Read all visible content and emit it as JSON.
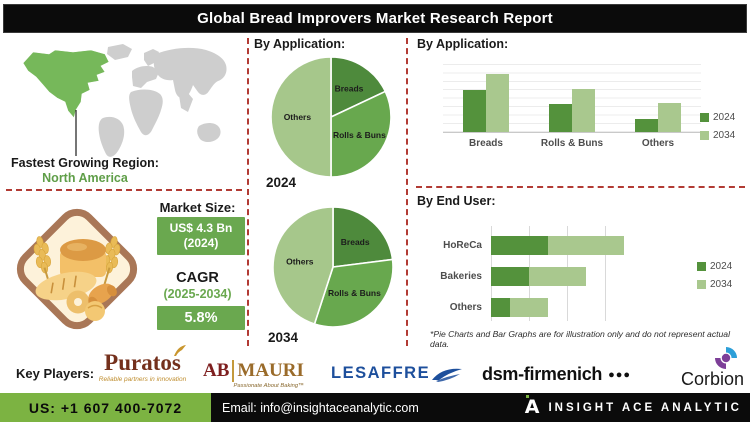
{
  "header": {
    "title": "Global Bread Improvers Market Research Report"
  },
  "left": {
    "region_label": "Fastest Growing Region:",
    "region_value": "North America",
    "map": {
      "highlight_region": "North America",
      "highlight_color": "#76b85a",
      "land_color": "#cecece"
    },
    "market": {
      "size_label": "Market Size:",
      "size_value": "US$ 4.3 Bn",
      "size_year": "(2024)",
      "cagr_label": "CAGR",
      "cagr_period": "(2025-2034)",
      "cagr_value": "5.8%",
      "badge_color": "#6aa84f"
    }
  },
  "pies_heading": "By Application:",
  "charts_note": "*Pie Charts and Bar Graphs are for illustration only and do not represent actual data.",
  "chart_data": [
    {
      "id": "pie-2024",
      "type": "pie",
      "title": "By Application:",
      "year_label": "2024",
      "labels": [
        "Breads",
        "Rolls & Buns",
        "Others"
      ],
      "values": [
        18,
        32,
        50
      ],
      "unit": "percent",
      "colors": [
        "#4e8a3c",
        "#68a84e",
        "#a6c78b"
      ],
      "start": "top",
      "direction": "clockwise"
    },
    {
      "id": "pie-2034",
      "type": "pie",
      "title": "By Application:",
      "year_label": "2034",
      "labels": [
        "Breads",
        "Rolls & Buns",
        "Others"
      ],
      "values": [
        23,
        32,
        45
      ],
      "unit": "percent",
      "colors": [
        "#4e8a3c",
        "#68a84e",
        "#a6c78b"
      ],
      "start": "top",
      "direction": "clockwise"
    },
    {
      "id": "bar-application",
      "type": "bar",
      "title": "By Application:",
      "categories": [
        "Breads",
        "Rolls & Buns",
        "Others"
      ],
      "series": [
        {
          "name": "2024",
          "values": [
            6.2,
            4.1,
            1.9
          ]
        },
        {
          "name": "2034",
          "values": [
            8.5,
            6.3,
            4.2
          ]
        }
      ],
      "ylim": [
        0,
        10
      ],
      "gridlines": true,
      "legend_position": "right",
      "colors": [
        "#54923c",
        "#a9c88e"
      ]
    },
    {
      "id": "stacked-end-user",
      "type": "stacked-bar-horizontal",
      "title": "By End User:",
      "categories": [
        "HoReCa",
        "Bakeries",
        "Others"
      ],
      "series": [
        {
          "name": "2024",
          "values": [
            1.5,
            1.0,
            0.5
          ]
        },
        {
          "name": "2034",
          "values": [
            2.0,
            1.5,
            1.0
          ]
        }
      ],
      "xlim": [
        0,
        4
      ],
      "gridlines": true,
      "legend_position": "right",
      "colors": [
        "#54923c",
        "#a9c88e"
      ]
    }
  ],
  "players": {
    "label": "Key Players:",
    "puratos": {
      "name": "Puratos",
      "tagline": "Reliable partners in innovation"
    },
    "abmauri": {
      "ab": "AB",
      "mauri": "MAURI",
      "tagline": "Passionate About Baking™"
    },
    "lesaffre": {
      "name": "LESAFFRE"
    },
    "dsm": {
      "name": "dsm-firmenich",
      "dots": "●●●"
    },
    "corbion": {
      "name": "Corbion"
    }
  },
  "footer": {
    "phone": "US: +1 607 400-7072",
    "email": "Email: info@insightaceanalytic.com",
    "brand_mark": "A",
    "brand": "INSIGHT ACE ANALYTIC",
    "accent_color": "#7cb342"
  }
}
